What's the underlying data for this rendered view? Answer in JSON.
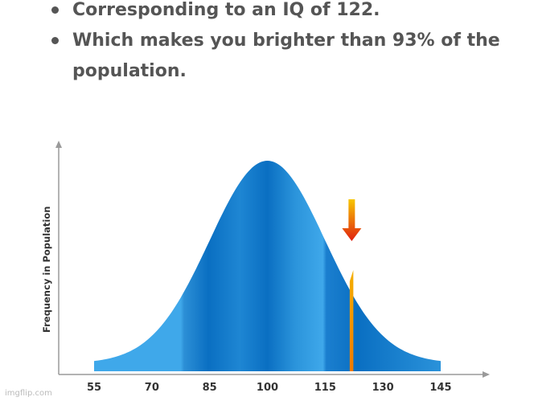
{
  "bullets": [
    "Corresponding to an IQ of 122.",
    "Which makes you brighter than 93% of the population."
  ],
  "chart_data": {
    "type": "area",
    "title": "",
    "xlabel": "",
    "ylabel": "Frequency in Population",
    "x_ticks": [
      55,
      70,
      85,
      100,
      115,
      130,
      145
    ],
    "xlim": [
      55,
      145
    ],
    "distribution": {
      "mean": 100,
      "sd": 15
    },
    "marker": {
      "value": 122
    },
    "grid": false
  },
  "colors": {
    "curve_dark": "#0a6fc2",
    "curve_light": "#3fa8ea",
    "marker_orange": "#f08a00",
    "marker_red": "#e02010",
    "text": "#555555",
    "axis": "#9a9a9a"
  },
  "watermark": "imgflip.com"
}
